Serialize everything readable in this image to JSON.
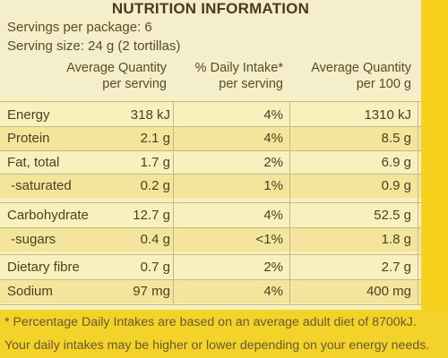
{
  "title": "NUTRITION INFORMATION",
  "servings_per_package": "Servings per package: 6",
  "serving_size": "Serving size: 24 g (2 tortillas)",
  "columns": {
    "qty": [
      "Average Quantity",
      "per serving"
    ],
    "di": [
      "% Daily Intake*",
      "per serving"
    ],
    "per100": [
      "Average Quantity",
      "per 100 g"
    ]
  },
  "rows": [
    {
      "label": "Energy",
      "qty": "318 kJ",
      "di": "4%",
      "per100": "1310 kJ"
    },
    {
      "label": "Protein",
      "qty": "2.1 g",
      "di": "4%",
      "per100": "8.5 g"
    },
    {
      "label": "Fat, total",
      "qty": "1.7 g",
      "di": "2%",
      "per100": "6.9 g"
    },
    {
      "label": " -saturated",
      "qty": "0.2 g",
      "di": "1%",
      "per100": "0.9 g"
    },
    {
      "label": "Carbohydrate",
      "qty": "12.7 g",
      "di": "4%",
      "per100": "52.5 g"
    },
    {
      "label": " -sugars",
      "qty": "0.4 g",
      "di": "<1%",
      "per100": "1.8 g"
    },
    {
      "label": "Dietary fibre",
      "qty": "0.7 g",
      "di": "2%",
      "per100": "2.7 g"
    },
    {
      "label": "Sodium",
      "qty": "97 mg",
      "di": "4%",
      "per100": "400 mg"
    }
  ],
  "footnote": [
    "* Percentage Daily Intakes are based on an average adult diet of 8700kJ.",
    "Your daily intakes may be higher or lower depending on your energy needs."
  ],
  "colors": {
    "package_yellow": "#f6d21c",
    "label_panel": "#f8f0bd",
    "text": "#4f4020"
  }
}
